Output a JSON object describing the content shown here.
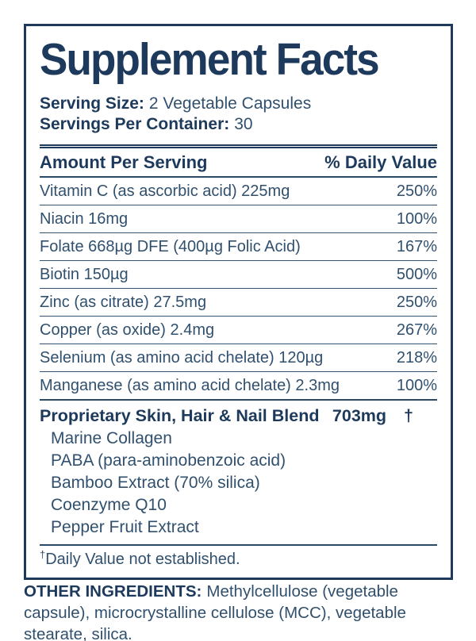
{
  "title": "Supplement Facts",
  "serving": {
    "size_label": "Serving Size:",
    "size_value": "2 Vegetable Capsules",
    "container_label": "Servings Per Container:",
    "container_value": "30"
  },
  "table": {
    "amount_header": "Amount Per Serving",
    "dv_header": "% Daily Value",
    "rows": [
      {
        "name": "Vitamin C (as ascorbic acid) 225mg",
        "dv": "250%"
      },
      {
        "name": "Niacin 16mg",
        "dv": "100%"
      },
      {
        "name": "Folate 668µg DFE (400µg Folic Acid)",
        "dv": "167%"
      },
      {
        "name": "Biotin 150µg",
        "dv": "500%"
      },
      {
        "name": "Zinc (as citrate) 27.5mg",
        "dv": "250%"
      },
      {
        "name": "Copper (as oxide) 2.4mg",
        "dv": "267%"
      },
      {
        "name": "Selenium (as amino acid chelate) 120µg",
        "dv": "218%"
      },
      {
        "name": "Manganese (as amino acid chelate) 2.3mg",
        "dv": "100%"
      }
    ]
  },
  "blend": {
    "name": "Proprietary Skin, Hair & Nail Blend",
    "amount": "703mg",
    "dagger": "†",
    "ingredients": [
      "Marine Collagen",
      "PABA (para-aminobenzoic acid)",
      "Bamboo Extract (70% silica)",
      "Coenzyme Q10",
      "Pepper Fruit Extract"
    ]
  },
  "footnote": {
    "dagger": "†",
    "text": "Daily Value not established."
  },
  "other_ingredients": {
    "label": "OTHER INGREDIENTS:",
    "text": "Methylcellulose (vegetable capsule), microcrystalline cellulose (MCC), vegetable stearate, silica."
  },
  "colors": {
    "dark_navy": "#1d3a5c",
    "text_navy": "#30506e",
    "background": "#ffffff"
  }
}
